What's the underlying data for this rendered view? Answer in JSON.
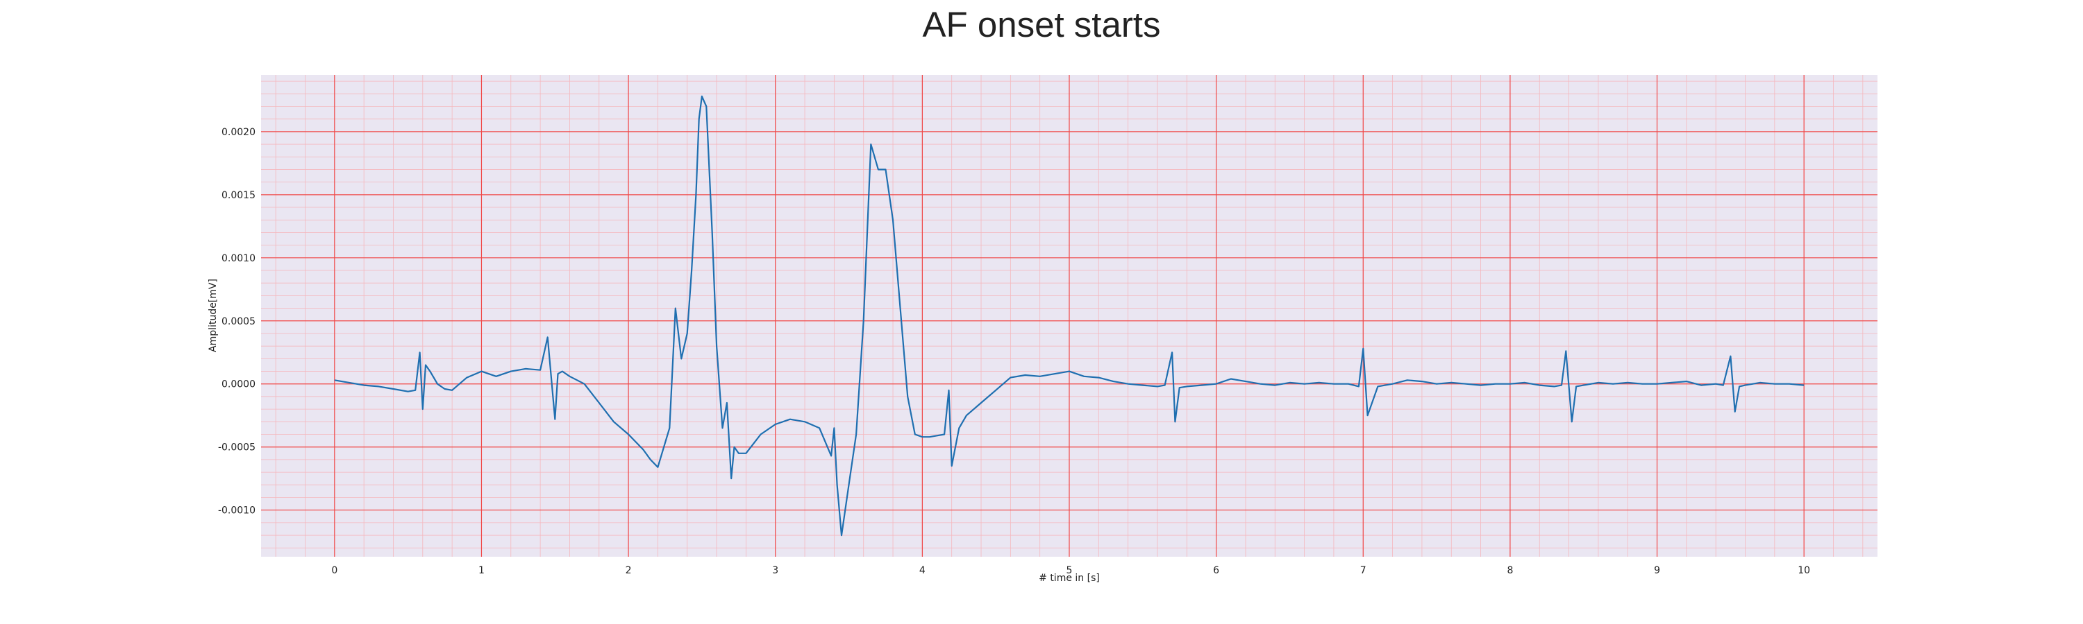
{
  "chart_data": {
    "type": "line",
    "title": "AF onset starts",
    "xlabel": "# time in [s]",
    "ylabel": "Amplitude[mV]",
    "xlim": [
      -0.5,
      10.5
    ],
    "ylim": [
      -0.00137,
      0.00245
    ],
    "x_ticks": [
      0,
      1,
      2,
      3,
      4,
      5,
      6,
      7,
      8,
      9,
      10
    ],
    "x_tick_labels": [
      "0",
      "1",
      "2",
      "3",
      "4",
      "5",
      "6",
      "7",
      "8",
      "9",
      "10"
    ],
    "y_ticks": [
      -0.001,
      -0.0005,
      0.0,
      0.0005,
      0.001,
      0.0015,
      0.002
    ],
    "y_tick_labels": [
      "-0.0010",
      "-0.0005",
      "0.0000",
      "0.0005",
      "0.0010",
      "0.0015",
      "0.0020"
    ],
    "grid": true,
    "colors": {
      "background": "#eae6f2",
      "major_grid": "#f04848",
      "minor_grid": "#f5b7bd",
      "line": "#1f6fb0"
    },
    "series": [
      {
        "x": [
          0.0,
          0.1,
          0.2,
          0.3,
          0.4,
          0.5,
          0.55,
          0.58,
          0.6,
          0.62,
          0.65,
          0.7,
          0.75,
          0.8,
          0.9,
          1.0,
          1.05,
          1.1,
          1.2,
          1.3,
          1.4,
          1.45,
          1.5,
          1.52,
          1.55,
          1.6,
          1.7,
          1.8,
          1.9,
          2.0,
          2.1,
          2.15,
          2.2,
          2.28,
          2.32,
          2.36,
          2.4,
          2.43,
          2.46,
          2.48,
          2.5,
          2.53,
          2.57,
          2.6,
          2.64,
          2.67,
          2.7,
          2.72,
          2.75,
          2.8,
          2.9,
          3.0,
          3.1,
          3.2,
          3.3,
          3.38,
          3.4,
          3.42,
          3.45,
          3.5,
          3.55,
          3.6,
          3.65,
          3.7,
          3.75,
          3.8,
          3.85,
          3.9,
          3.95,
          4.0,
          4.05,
          4.1,
          4.15,
          4.18,
          4.2,
          4.25,
          4.3,
          4.4,
          4.5,
          4.6,
          4.7,
          4.8,
          4.9,
          5.0,
          5.1,
          5.2,
          5.3,
          5.4,
          5.5,
          5.6,
          5.65,
          5.7,
          5.72,
          5.75,
          5.8,
          5.9,
          6.0,
          6.1,
          6.2,
          6.3,
          6.4,
          6.5,
          6.6,
          6.7,
          6.8,
          6.9,
          6.97,
          7.0,
          7.03,
          7.1,
          7.2,
          7.3,
          7.4,
          7.5,
          7.6,
          7.7,
          7.8,
          7.9,
          8.0,
          8.1,
          8.2,
          8.3,
          8.35,
          8.38,
          8.42,
          8.45,
          8.5,
          8.6,
          8.7,
          8.8,
          8.9,
          9.0,
          9.1,
          9.2,
          9.3,
          9.4,
          9.45,
          9.5,
          9.53,
          9.56,
          9.6,
          9.7,
          9.8,
          9.9,
          10.0
        ],
        "y": [
          3e-05,
          1e-05,
          -1e-05,
          -2e-05,
          -4e-05,
          -6e-05,
          -5e-05,
          0.00025,
          -0.0002,
          0.00015,
          0.0001,
          0.0,
          -4e-05,
          -5e-05,
          5e-05,
          0.0001,
          8e-05,
          6e-05,
          0.0001,
          0.00012,
          0.00011,
          0.00037,
          -0.00028,
          8e-05,
          0.0001,
          6e-05,
          0.0,
          -0.00015,
          -0.0003,
          -0.0004,
          -0.00052,
          -0.0006,
          -0.00066,
          -0.00035,
          0.0006,
          0.0002,
          0.0004,
          0.0009,
          0.0015,
          0.0021,
          0.00228,
          0.0022,
          0.0012,
          0.0003,
          -0.00035,
          -0.00015,
          -0.00075,
          -0.0005,
          -0.00055,
          -0.00055,
          -0.0004,
          -0.00032,
          -0.00028,
          -0.0003,
          -0.00035,
          -0.00057,
          -0.00035,
          -0.0008,
          -0.0012,
          -0.0008,
          -0.0004,
          0.0005,
          0.0019,
          0.0017,
          0.0017,
          0.0013,
          0.0006,
          -0.0001,
          -0.0004,
          -0.00042,
          -0.00042,
          -0.00041,
          -0.0004,
          -5e-05,
          -0.00065,
          -0.00035,
          -0.00025,
          -0.00015,
          -5e-05,
          5e-05,
          7e-05,
          6e-05,
          8e-05,
          0.0001,
          6e-05,
          5e-05,
          2e-05,
          0.0,
          -1e-05,
          -2e-05,
          -1e-05,
          0.00025,
          -0.0003,
          -3e-05,
          -2e-05,
          -1e-05,
          0.0,
          4e-05,
          2e-05,
          0.0,
          -1e-05,
          1e-05,
          0.0,
          1e-05,
          0.0,
          0.0,
          -2e-05,
          0.00028,
          -0.00025,
          -2e-05,
          0.0,
          3e-05,
          2e-05,
          0.0,
          1e-05,
          0.0,
          -1e-05,
          0.0,
          0.0,
          1e-05,
          -1e-05,
          -2e-05,
          -1e-05,
          0.00026,
          -0.0003,
          -2e-05,
          -1e-05,
          1e-05,
          0.0,
          1e-05,
          0.0,
          0.0,
          1e-05,
          2e-05,
          -1e-05,
          0.0,
          -1e-05,
          0.00022,
          -0.00022,
          -2e-05,
          -1e-05,
          1e-05,
          0.0,
          0.0,
          -1e-05
        ]
      }
    ]
  }
}
